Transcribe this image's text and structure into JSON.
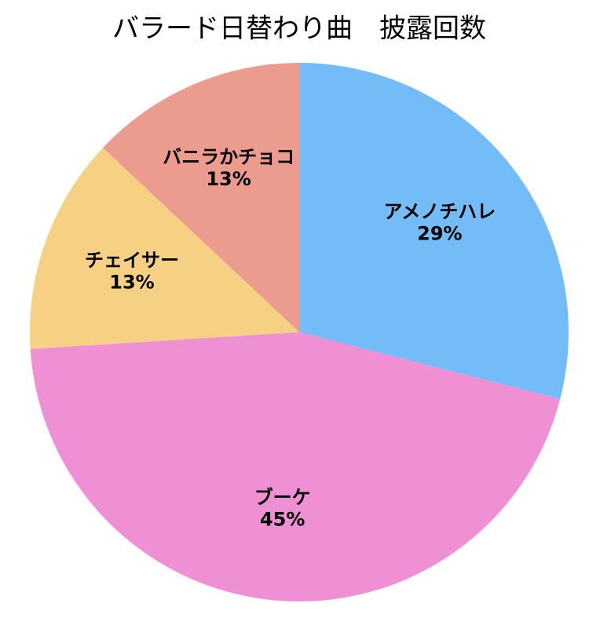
{
  "chart_data": {
    "type": "pie",
    "title": "バラード日替わり曲　披露回数",
    "categories": [
      "アメノチハレ",
      "ブーケ",
      "チェイサー",
      "バニラかチョコ"
    ],
    "values": [
      29,
      45,
      13,
      13
    ],
    "value_labels": [
      "29%",
      "45%",
      "13%",
      "13%"
    ],
    "colors": [
      "#74bcf7",
      "#ef90d5",
      "#f6d184",
      "#ec9b8f"
    ]
  }
}
